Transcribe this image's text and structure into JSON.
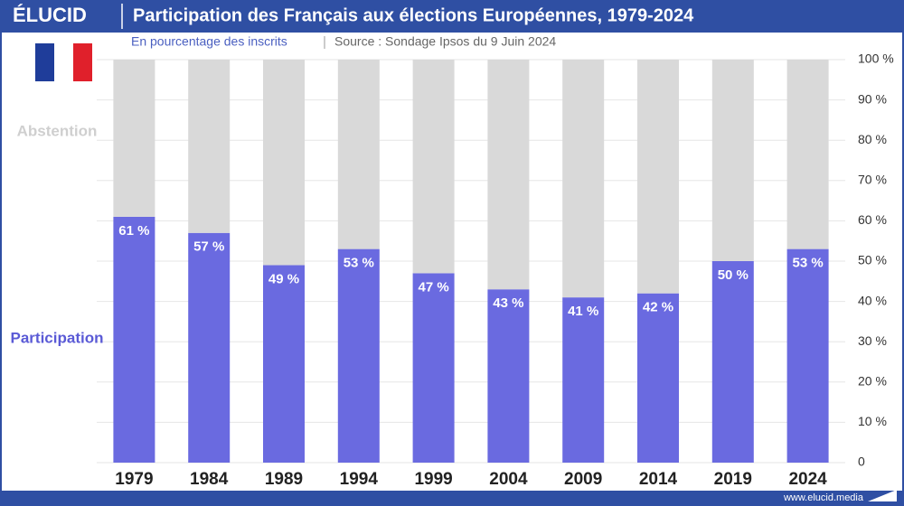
{
  "brand": "ÉLUCID",
  "footer": "www.elucid.media",
  "chart_data": {
    "type": "stacked-bar",
    "title": "Participation des Français aux élections Européennes, 1979-2024",
    "subtitle": "En pourcentage des inscrits",
    "source": "Source : Sondage Ipsos du 9 Juin 2024",
    "categories": [
      "1979",
      "1984",
      "1989",
      "1994",
      "1999",
      "2004",
      "2009",
      "2014",
      "2019",
      "2024"
    ],
    "series": [
      {
        "name": "Participation",
        "color": "#6a6ae0",
        "label_color": "#5a5ad6",
        "values": [
          61,
          57,
          49,
          53,
          47,
          43,
          41,
          42,
          50,
          53
        ],
        "value_labels": [
          "61 %",
          "57 %",
          "49 %",
          "53 %",
          "47 %",
          "43 %",
          "41 %",
          "42 %",
          "50 %",
          "53 %"
        ]
      },
      {
        "name": "Abstention",
        "color": "#d9d9d9",
        "label_color": "#cfcfcf",
        "values": [
          39,
          43,
          51,
          47,
          53,
          57,
          59,
          58,
          50,
          47
        ]
      }
    ],
    "ylim": [
      0,
      100
    ],
    "yticks": [
      0,
      {
        "value": 10,
        "label": "10 %"
      },
      {
        "value": 20,
        "label": "20 %"
      },
      {
        "value": 30,
        "label": "30 %"
      },
      {
        "value": 40,
        "label": "40 %"
      },
      {
        "value": 50,
        "label": "50 %"
      },
      {
        "value": 60,
        "label": "60 %"
      },
      {
        "value": 70,
        "label": "70 %"
      },
      {
        "value": 80,
        "label": "80 %"
      },
      {
        "value": 90,
        "label": "90 %"
      },
      {
        "value": 100,
        "label": "100 %"
      }
    ],
    "grid": true,
    "axis_side": "right"
  }
}
